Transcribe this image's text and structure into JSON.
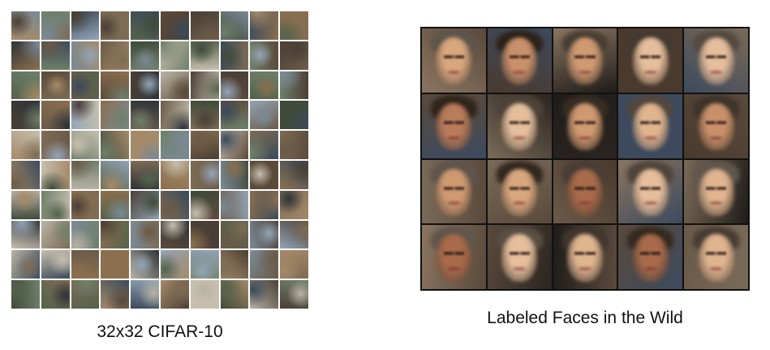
{
  "panels": [
    {
      "caption": "32x32 CIFAR-10",
      "rows": 10,
      "cols": 10,
      "palette": [
        "#5b4a3a",
        "#7a8a95",
        "#3f4a3a",
        "#a58a68",
        "#2e3338",
        "#8b6f4e",
        "#6f7f6a",
        "#b9b3a4",
        "#4a3f35",
        "#93a4b5",
        "#6a5a48",
        "#c6bfae",
        "#3a4a5a",
        "#7d6b54",
        "#55624a"
      ]
    },
    {
      "caption": "Labeled Faces in the Wild",
      "rows": 4,
      "cols": 5,
      "skin_tones": [
        "#d9a77e",
        "#c48b66",
        "#e0b48f",
        "#b97c5a",
        "#cf9a72",
        "#a86a4a",
        "#e5be9c",
        "#c9916b"
      ],
      "backgrounds": [
        "#2b2520",
        "#5a4a3c",
        "#3d4a5e",
        "#7a6a58",
        "#1f1c1a",
        "#6b5a48",
        "#4a3a2e",
        "#8a7560"
      ]
    }
  ]
}
